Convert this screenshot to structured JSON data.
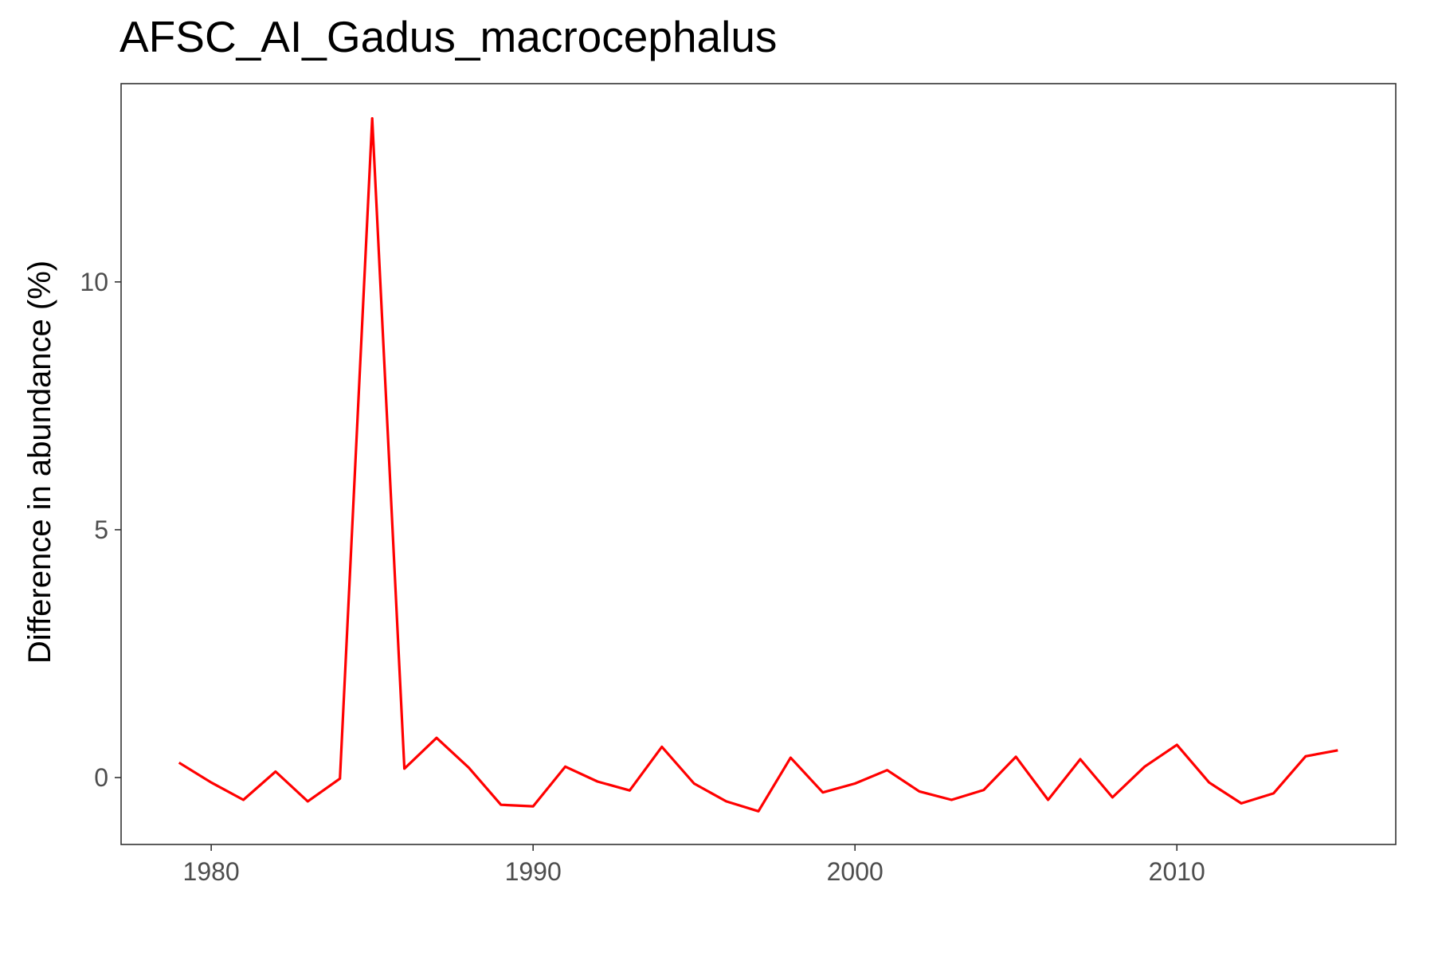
{
  "chart_data": {
    "type": "line",
    "title": "AFSC_AI_Gadus_macrocephalus",
    "xlabel": "",
    "ylabel": "Difference in abundance (%)",
    "xlim": [
      1977.2,
      2016.8
    ],
    "ylim": [
      -1.35,
      14.0
    ],
    "x_ticks": [
      1980,
      1990,
      2000,
      2010
    ],
    "y_ticks": [
      0,
      5,
      10
    ],
    "grid": false,
    "line_color": "#ff0000",
    "series": [
      {
        "x": [
          1979,
          1980,
          1981,
          1982,
          1983,
          1984,
          1985,
          1986,
          1987,
          1988,
          1989,
          1990,
          1991,
          1992,
          1993,
          1994,
          1995,
          1996,
          1997,
          1998,
          1999,
          2000,
          2001,
          2002,
          2003,
          2004,
          2005,
          2006,
          2007,
          2008,
          2009,
          2010,
          2011,
          2012,
          2013,
          2014,
          2015
        ],
        "y": [
          0.3,
          -0.1,
          -0.45,
          0.12,
          -0.48,
          -0.02,
          13.3,
          0.18,
          0.8,
          0.2,
          -0.55,
          -0.58,
          0.22,
          -0.08,
          -0.26,
          0.62,
          -0.12,
          -0.48,
          -0.68,
          0.4,
          -0.3,
          -0.12,
          0.15,
          -0.28,
          -0.45,
          -0.25,
          0.42,
          -0.45,
          0.37,
          -0.4,
          0.22,
          0.66,
          -0.1,
          -0.52,
          -0.32,
          0.43,
          0.55
        ]
      }
    ]
  }
}
